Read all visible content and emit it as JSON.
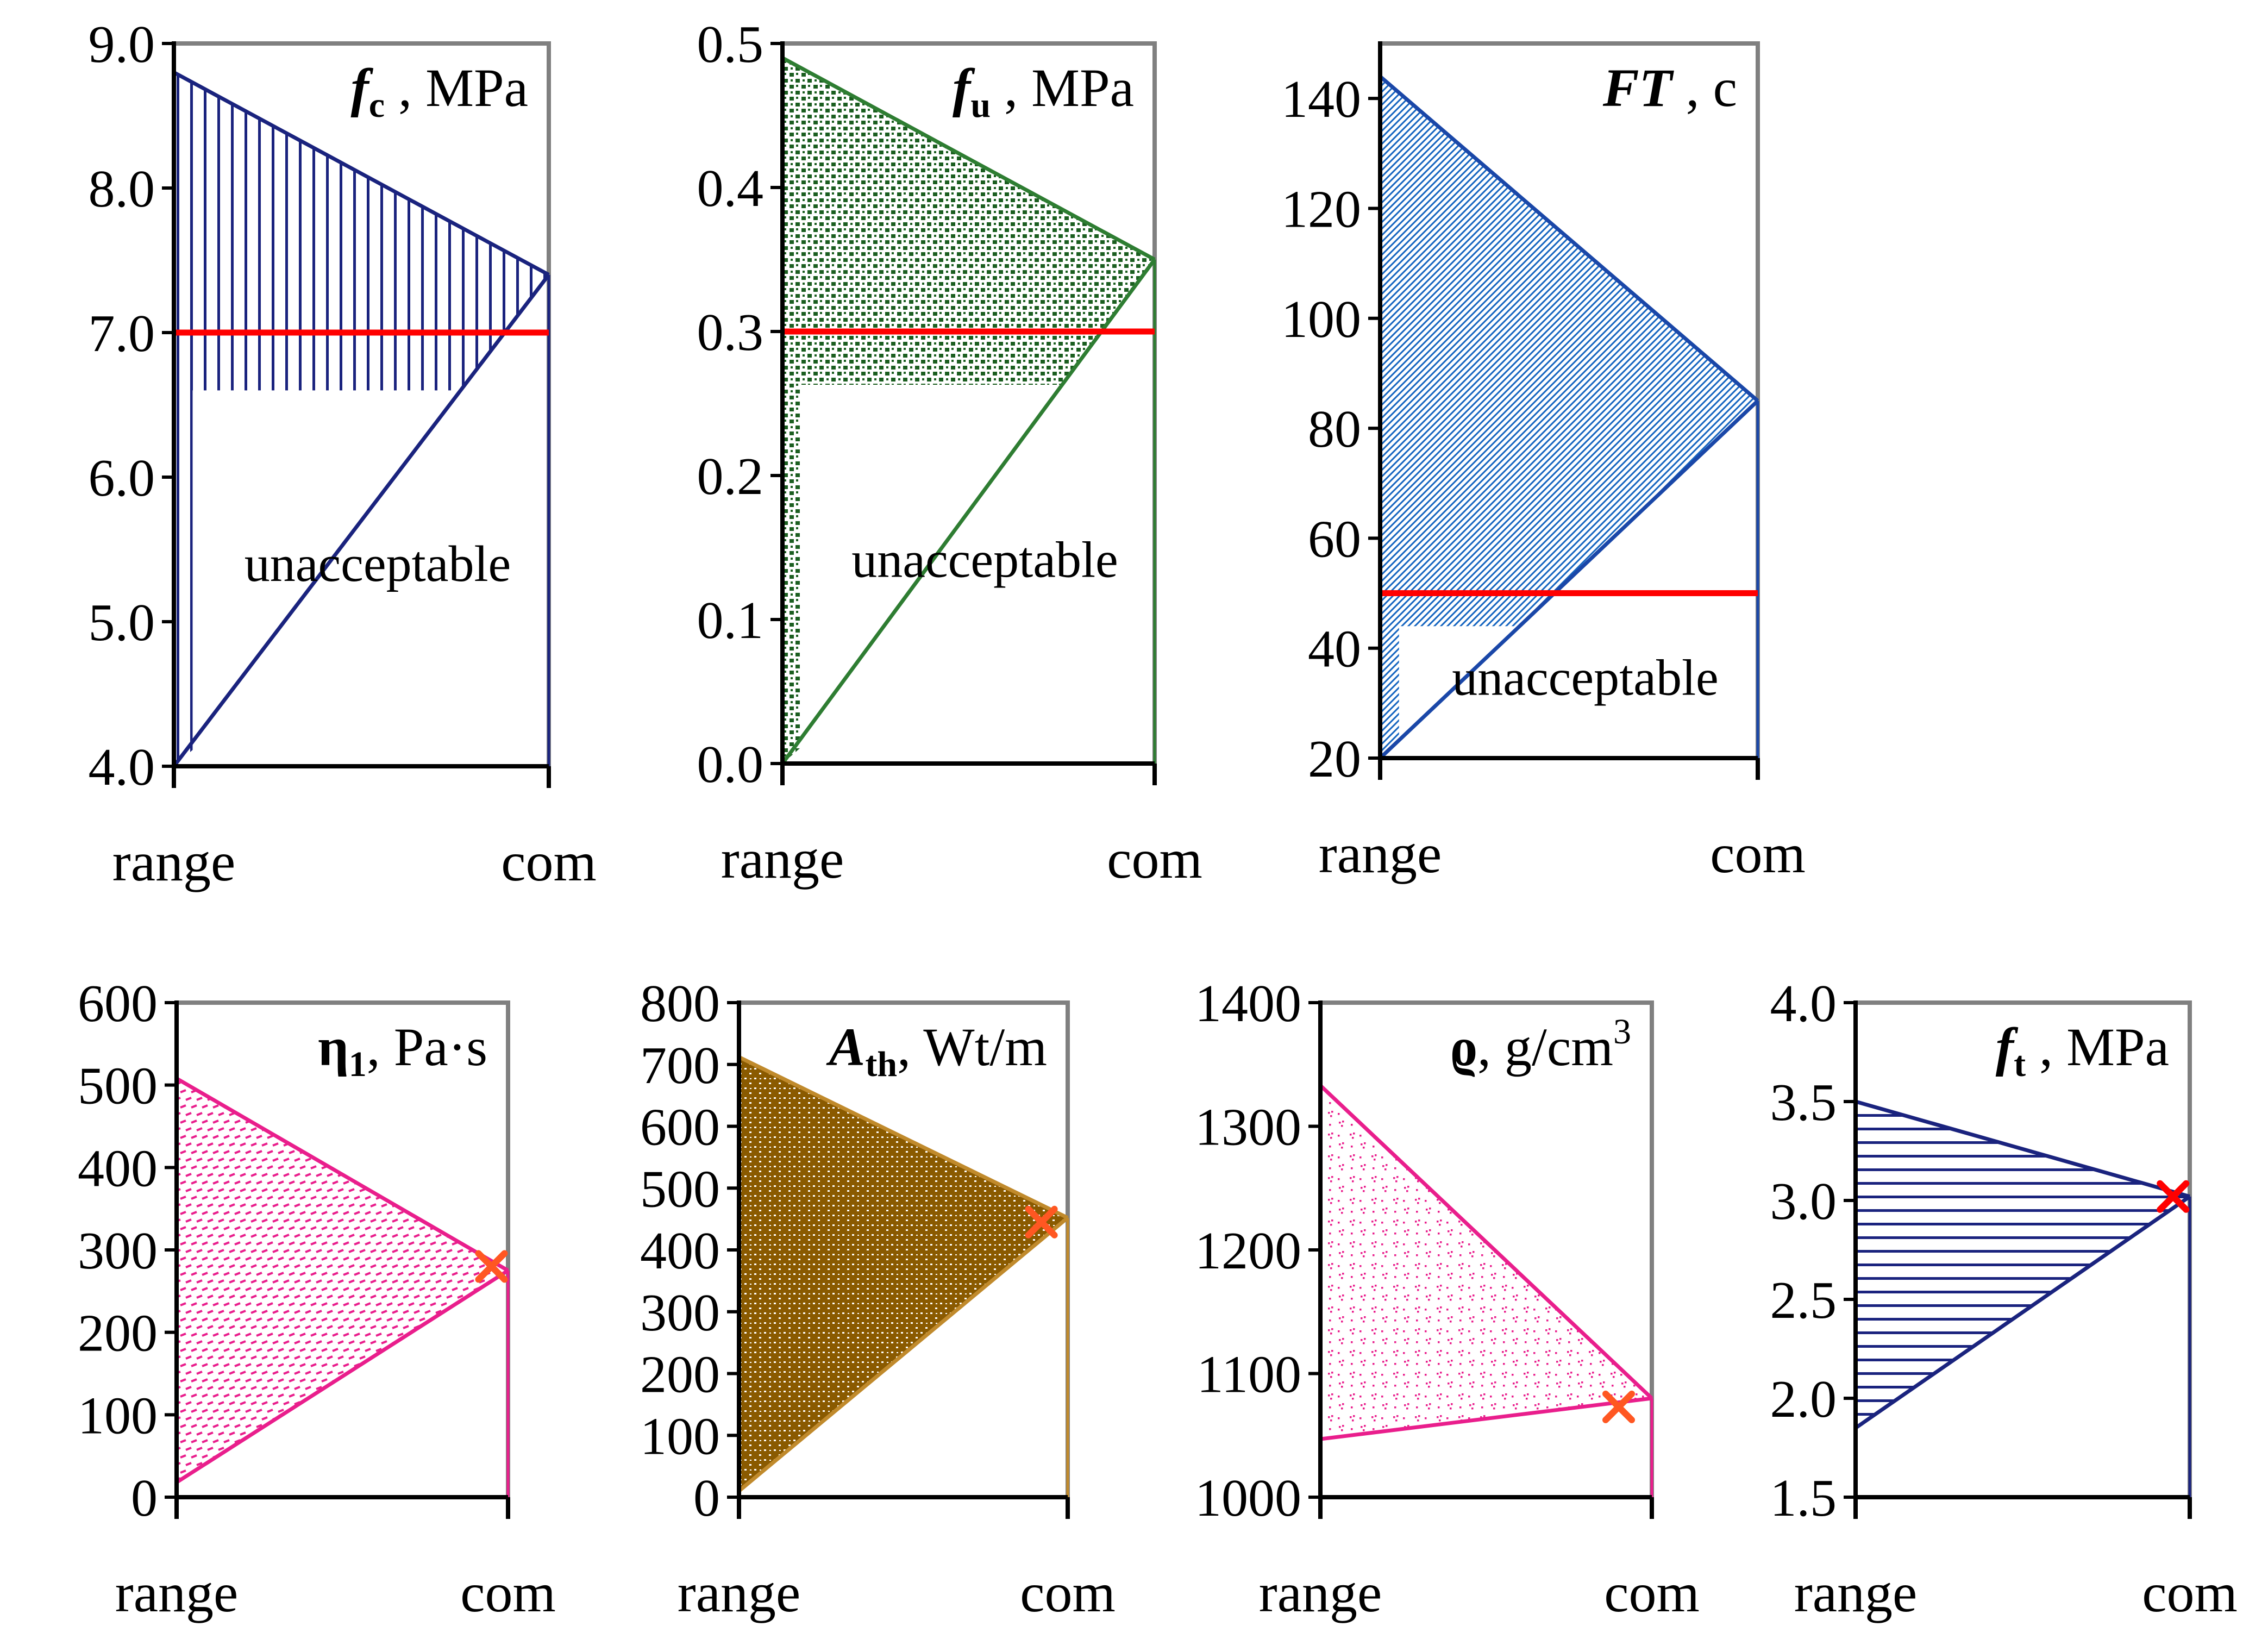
{
  "chart_data": [
    {
      "id": "fc",
      "type": "area",
      "title": {
        "sym": "f",
        "sub": "c",
        "unit": " , MPa",
        "italic": true,
        "bold": false
      },
      "x_categories": [
        "range",
        "com"
      ],
      "ylim": [
        4.0,
        9.0
      ],
      "yticks": [
        4.0,
        5.0,
        6.0,
        7.0,
        8.0,
        9.0
      ],
      "tick_decimals": 1,
      "upper": [
        8.8,
        7.4
      ],
      "lower": [
        4.0,
        7.4
      ],
      "lower_label_cut": 6.6,
      "threshold": 7.0,
      "annotation": "unacceptable",
      "colors": {
        "fill": "#1a237e",
        "line": "#1a237e",
        "threshold": "#ff0000",
        "axis_frame": "#808080"
      },
      "hatch": "vertical"
    },
    {
      "id": "fu",
      "type": "area",
      "title": {
        "sym": "f",
        "sub": "u",
        "unit": " , MPa",
        "italic": true,
        "bold": false
      },
      "x_categories": [
        "range",
        "com"
      ],
      "ylim": [
        0.0,
        0.5
      ],
      "yticks": [
        0.0,
        0.1,
        0.2,
        0.3,
        0.4,
        0.5
      ],
      "tick_decimals": 1,
      "upper": [
        0.49,
        0.35
      ],
      "lower": [
        0.0,
        0.35
      ],
      "lower_label_cut": 0.263,
      "threshold": 0.3,
      "annotation": "unacceptable",
      "colors": {
        "fill": "#1b5e20",
        "line": "#2e7d32",
        "threshold": "#ff0000",
        "axis_frame": "#808080"
      },
      "hatch": "dots"
    },
    {
      "id": "ft_cycles",
      "type": "area",
      "title": {
        "sym": "FT",
        "sub": "",
        "unit": " , c",
        "italic": true,
        "bold": true
      },
      "x_categories": [
        "range",
        "com"
      ],
      "ylim": [
        20,
        150
      ],
      "yticks": [
        20,
        40,
        60,
        80,
        100,
        120,
        140
      ],
      "tick_decimals": 0,
      "upper": [
        144,
        85
      ],
      "lower": [
        20,
        85
      ],
      "lower_label_cut": 44,
      "threshold": 50,
      "annotation": "unacceptable",
      "colors": {
        "fill": "#1565c0",
        "line": "#1a47a8",
        "threshold": "#ff0000",
        "axis_frame": "#808080"
      },
      "hatch": "diagonal"
    },
    {
      "id": "eta",
      "type": "area",
      "title": {
        "sym": "η",
        "sub": "1",
        "unit": ", Pa·s",
        "italic": false,
        "bold": true
      },
      "x_categories": [
        "range",
        "com"
      ],
      "ylim": [
        0,
        600
      ],
      "yticks": [
        0,
        100,
        200,
        300,
        400,
        500,
        600
      ],
      "tick_decimals": 0,
      "upper": [
        508,
        275
      ],
      "lower": [
        18,
        275
      ],
      "marker": {
        "x": 0.95,
        "y": 280
      },
      "colors": {
        "fill": "#e91e8c",
        "line": "#e91e8c",
        "marker": "#ff5722",
        "axis_frame": "#808080"
      },
      "hatch": "dashes"
    },
    {
      "id": "ath",
      "type": "area",
      "title": {
        "sym": "A",
        "sub": "th",
        "unit": ", Wt/m",
        "italic": true,
        "bold": true
      },
      "x_categories": [
        "range",
        "com"
      ],
      "ylim": [
        0,
        800
      ],
      "yticks": [
        0,
        100,
        200,
        300,
        400,
        500,
        600,
        700,
        800
      ],
      "tick_decimals": 0,
      "upper": [
        712,
        452
      ],
      "lower": [
        10,
        452
      ],
      "marker": {
        "x": 0.92,
        "y": 445
      },
      "colors": {
        "fill": "#8a5a00",
        "line": "#c08a2c",
        "marker": "#ff5722",
        "axis_frame": "#808080"
      },
      "hatch": "dense"
    },
    {
      "id": "rho",
      "type": "area",
      "title": {
        "sym": "ϱ",
        "sub": "",
        "unit": ", g/cm",
        "sup": "3",
        "italic": false,
        "bold": true
      },
      "x_categories": [
        "range",
        "com"
      ],
      "ylim": [
        1000,
        1400
      ],
      "yticks": [
        1000,
        1100,
        1200,
        1300,
        1400
      ],
      "tick_decimals": 0,
      "upper": [
        1333,
        1080
      ],
      "lower": [
        1047,
        1080
      ],
      "marker": {
        "x": 0.9,
        "y": 1073
      },
      "colors": {
        "fill": "#e91e8c",
        "line": "#e91e8c",
        "marker": "#ff5722",
        "axis_frame": "#808080"
      },
      "hatch": "sparse"
    },
    {
      "id": "ft_mpa",
      "type": "area",
      "title": {
        "sym": "f",
        "sub": "t",
        "unit": " , MPa",
        "italic": true,
        "bold": false
      },
      "x_categories": [
        "range",
        "com"
      ],
      "ylim": [
        1.5,
        4.0
      ],
      "yticks": [
        1.5,
        2.0,
        2.5,
        3.0,
        3.5,
        4.0
      ],
      "tick_decimals": 1,
      "upper": [
        3.5,
        3.02
      ],
      "lower": [
        1.85,
        3.02
      ],
      "marker": {
        "x": 0.95,
        "y": 3.02
      },
      "colors": {
        "fill": "#1a237e",
        "line": "#1a237e",
        "marker": "#ff0000",
        "axis_frame": "#808080"
      },
      "hatch": "horizontal"
    }
  ]
}
